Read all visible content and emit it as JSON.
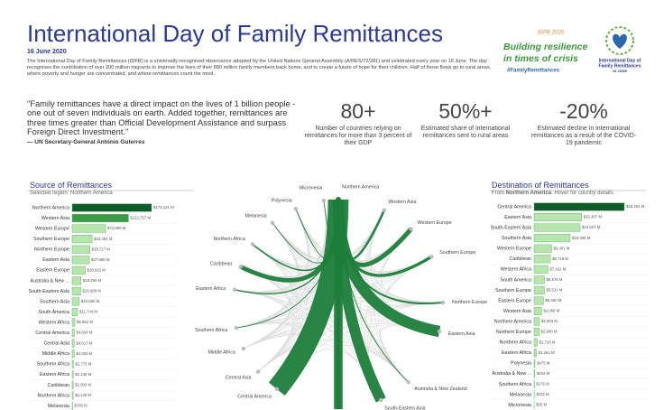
{
  "header": {
    "title": "International Day of Family Remittances",
    "date": "16 June 2020",
    "description": "The International Day of Family Remittances (IDFR) is a universally-recognised observance adopted by the United Nations General Assembly (A/RES/72/281) and celebrated every year on 16 June. The day recognises the contribution of over 200 million migrants to improve the lives of their 800 million family members back home, and to create a future of hope for their children. Half of these flows go to rural areas, where poverty and hunger are concentrated, and where remittances count the most."
  },
  "logos": {
    "idfr": {
      "year": "IDFR 2020",
      "line1": "Building resilience",
      "line2": "in times of crisis",
      "hashtag": "#FamilyRemittances"
    },
    "un": {
      "line1": "International Day of",
      "line2": "Family Remittances",
      "date": "16 JUNE"
    }
  },
  "quote": {
    "text": "\"Family remittances have a direct impact on the lives of 1 billion people - one out of seven individuals on earth. Added together, remittances are three times greater than Official Development Assistance and surpass Foreign Direct Investment.\"",
    "author": "— UN Secretary-General António Guterres"
  },
  "stats": [
    {
      "value": "80+",
      "caption": "Number of countries relying on remittances for more than 3 percent of their GDP"
    },
    {
      "value": "50%+",
      "caption": "Estimated share of international remittances sent to rural areas"
    },
    {
      "value": "-20%",
      "caption": "Estimated decline in international remittances as a result of the COVID-19 pandemic"
    }
  ],
  "chart_data": [
    {
      "type": "hbar",
      "title": "Source of Remittances",
      "subtitle": {
        "label": "Selected region:",
        "region": "Northern America"
      },
      "categories": [
        "Northern America",
        "Western Asia",
        "Western Europe",
        "Southern Europe",
        "Northern Europe",
        "Eastern Asia",
        "Eastern Europe",
        "Australia & New ...",
        "South-Eastern Asia",
        "Southern Asia",
        "South America",
        "Western Africa",
        "Central America",
        "Central Asia",
        "Middle Africa",
        "Southern Africa",
        "Eastern Africa",
        "Caribbean",
        "Northern Africa",
        "Melanesia"
      ],
      "values": [
        173121,
        122757,
        72896,
        43481,
        38727,
        37586,
        28662,
        19296,
        18689,
        15555,
        11744,
        5962,
        4834,
        4617,
        4383,
        2775,
        2448,
        2300,
        2130,
        786
      ],
      "value_labels": [
        "$173,121 M",
        "$122,757 M",
        "$72,896 M",
        "$43,481 M",
        "$38,727 M",
        "$37,586 M",
        "$28,662 M",
        "$19,296 M",
        "$18,689 M",
        "$15,555 M",
        "$11,744 M",
        "$5,962 M",
        "$4,834 M",
        "$4,617 M",
        "$4,383 M",
        "$2,775 M",
        "$2,448 M",
        "$2,300 M",
        "$2,130 M",
        "$786 M"
      ],
      "colors": [
        "#0f5c2a",
        "#3d9b48",
        "#b6e6ad",
        "#b6e6ad",
        "#b6e6ad",
        "#b6e6ad",
        "#b6e6ad",
        "#b6e6ad",
        "#b6e6ad",
        "#b6e6ad",
        "#b6e6ad",
        "#b6e6ad",
        "#b6e6ad",
        "#b6e6ad",
        "#b6e6ad",
        "#b6e6ad",
        "#b6e6ad",
        "#b6e6ad",
        "#b6e6ad",
        "#b6e6ad"
      ]
    },
    {
      "type": "chord",
      "nodes": [
        "Micronesia",
        "Northern America",
        "Western Asia",
        "Western Europe",
        "Southern Europe",
        "Northern Europe",
        "Eastern Asia",
        "Australia & New Zealand",
        "South-Eastern Asia",
        "Central America",
        "Central Asia",
        "Middle Africa",
        "Southern Africa",
        "Eastern Africa",
        "Caribbean",
        "Northern Africa",
        "Melanesia",
        "Polynesia"
      ],
      "flow_color": "#1e7e3a",
      "link_color": "#dddddd"
    },
    {
      "type": "hbar",
      "title": "Destination of Remittances",
      "subtitle": {
        "prefix": "From",
        "region": "Northern America",
        "suffix": ". Hover for country details."
      },
      "categories": [
        "Central America",
        "Eastern Asia",
        "South-Eastern Asia",
        "Southern Asia",
        "Western Europe",
        "Caribbean",
        "Western Africa",
        "South America",
        "Southern Europe",
        "Eastern Europe",
        "Western Asia",
        "Northern America",
        "Northern Europe",
        "Northern Africa",
        "Eastern Africa",
        "Polynesia",
        "Australia & New ...",
        "Southern Africa",
        "Melanesia",
        "Micronesia"
      ],
      "values": [
        48264,
        25467,
        24627,
        19305,
        9401,
        8719,
        7422,
        5576,
        5531,
        5060,
        4068,
        2903,
        2680,
        1726,
        1261,
        475,
        404,
        176,
        102,
        55
      ],
      "value_labels": [
        "$48,264 M",
        "$25,467 M",
        "$24,627 M",
        "$19,305 M",
        "$9,401 M",
        "$8,719 M",
        "$7,422 M",
        "$5,576 M",
        "$5,531 M",
        "$5,060 M",
        "$4,068 M",
        "$2,903 M",
        "$2,680 M",
        "$1,726 M",
        "$1,261 M",
        "$475 M",
        "$404 M",
        "$176 M",
        "$102 M",
        "$55 M"
      ],
      "colors": [
        "#0f5c2a",
        "#b6e6ad",
        "#b6e6ad",
        "#b6e6ad",
        "#b6e6ad",
        "#b6e6ad",
        "#b6e6ad",
        "#b6e6ad",
        "#b6e6ad",
        "#b6e6ad",
        "#b6e6ad",
        "#b6e6ad",
        "#b6e6ad",
        "#b6e6ad",
        "#b6e6ad",
        "#b6e6ad",
        "#b6e6ad",
        "#b6e6ad",
        "#b6e6ad",
        "#b6e6ad"
      ]
    }
  ]
}
